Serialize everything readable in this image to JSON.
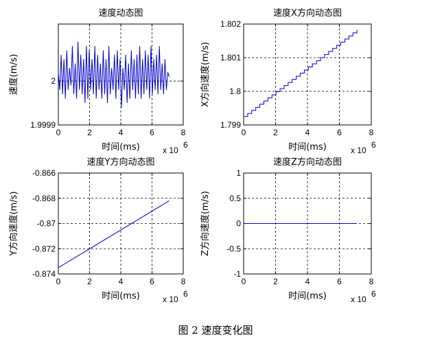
{
  "caption": "图 2  速度变化图",
  "colors": {
    "line": "#0000cc",
    "axes": "#000000",
    "grid": "#000000"
  },
  "chart_data": [
    {
      "type": "line",
      "title": "速度动态图",
      "xlabel": "时间(ms)",
      "ylabel": "速度(m/s)",
      "xlim": [
        0,
        8
      ],
      "ylim": [
        1.9999,
        2.00013
      ],
      "xticks": [
        "0",
        "2",
        "4",
        "6",
        "8"
      ],
      "yticks": [
        {
          "v": 1.9999,
          "t": "1.9999"
        },
        {
          "v": 2.0,
          "t": "2"
        }
      ],
      "x_exponent_base": "x 10",
      "x_exponent_power": "6",
      "grid": true,
      "noisy": true,
      "y": [
        2.00002,
        1.99998,
        2.00006,
        1.99997,
        2.00005,
        1.99996,
        2.00007,
        1.99998,
        2.00003,
        1.99999,
        2.00008,
        1.99997,
        2.00004,
        1.99996,
        2.00009,
        1.99998,
        2.00006,
        1.99997,
        2.00005,
        1.99995,
        2.00008,
        1.99996,
        2.00007,
        1.99998,
        2.00005,
        1.99997,
        2.00008,
        1.99996,
        2.00006,
        1.99998,
        2.00004,
        1.99996,
        2.00007,
        1.99997,
        2.00005,
        1.99995,
        2.00008,
        1.99997,
        2.00003,
        1.99998,
        2.00006,
        1.99996,
        2.00007,
        1.99998,
        2.00005,
        1.99994,
        2.00003,
        1.99998,
        2.00006,
        1.99995,
        2.00004,
        1.99996,
        2.00007,
        1.99998,
        2.00005,
        1.99996,
        2.00006,
        1.99997,
        2.00008,
        1.99996,
        2.00005,
        1.99997,
        2.00007,
        1.99998,
        2.00006,
        1.99996,
        2.00008,
        1.99997,
        2.00005,
        1.99998,
        2.00006,
        1.99997,
        2.00008,
        1.99998,
        2.00004,
        1.99997,
        2.00005,
        1.99998,
        2.00002,
        2.00001
      ],
      "x_range": [
        0,
        7.1
      ]
    },
    {
      "type": "line",
      "title": "速度X方向动态图",
      "xlabel": "时间(ms)",
      "ylabel": "X方向速度(m/s)",
      "xlim": [
        0,
        8
      ],
      "ylim": [
        1.799,
        1.802
      ],
      "xticks": [
        "0",
        "2",
        "4",
        "6",
        "8"
      ],
      "yticks": [
        {
          "v": 1.799,
          "t": "1.799"
        },
        {
          "v": 1.8,
          "t": "1.8"
        },
        {
          "v": 1.801,
          "t": "1.801"
        },
        {
          "v": 1.802,
          "t": "1.802"
        }
      ],
      "x_exponent_base": "x 10",
      "x_exponent_power": "6",
      "grid": true,
      "staircase": true,
      "x_range": [
        0,
        7.1
      ],
      "y_start": 1.79925,
      "y_end": 1.80183
    },
    {
      "type": "line",
      "title": "速度Y方向动态图",
      "xlabel": "时间(ms)",
      "ylabel": "Y方向速度(m/s)",
      "xlim": [
        0,
        8
      ],
      "ylim": [
        -0.874,
        -0.866
      ],
      "xticks": [
        "0",
        "2",
        "4",
        "6",
        "8"
      ],
      "yticks": [
        {
          "v": -0.874,
          "t": "-0.874"
        },
        {
          "v": -0.872,
          "t": "-0.872"
        },
        {
          "v": -0.87,
          "t": "-0.87"
        },
        {
          "v": -0.868,
          "t": "-0.868"
        },
        {
          "v": -0.866,
          "t": "-0.866"
        }
      ],
      "x_exponent_base": "x 10",
      "x_exponent_power": "6",
      "grid": true,
      "x_range": [
        0,
        7.1
      ],
      "y_start": -0.8735,
      "y_end": -0.8682
    },
    {
      "type": "line",
      "title": "速度Z方向动态图",
      "xlabel": "时间(ms)",
      "ylabel": "Z方向速度(m/s)",
      "xlim": [
        0,
        8
      ],
      "ylim": [
        -1,
        1
      ],
      "xticks": [
        "0",
        "2",
        "4",
        "6",
        "8"
      ],
      "yticks": [
        {
          "v": -1,
          "t": "-1"
        },
        {
          "v": -0.5,
          "t": "-0.5"
        },
        {
          "v": 0,
          "t": "0"
        },
        {
          "v": 0.5,
          "t": "0.5"
        },
        {
          "v": 1,
          "t": "1"
        }
      ],
      "x_exponent_base": "x 10",
      "x_exponent_power": "6",
      "grid": true,
      "x_range": [
        0,
        7.1
      ],
      "y_start": 0,
      "y_end": 0
    }
  ]
}
